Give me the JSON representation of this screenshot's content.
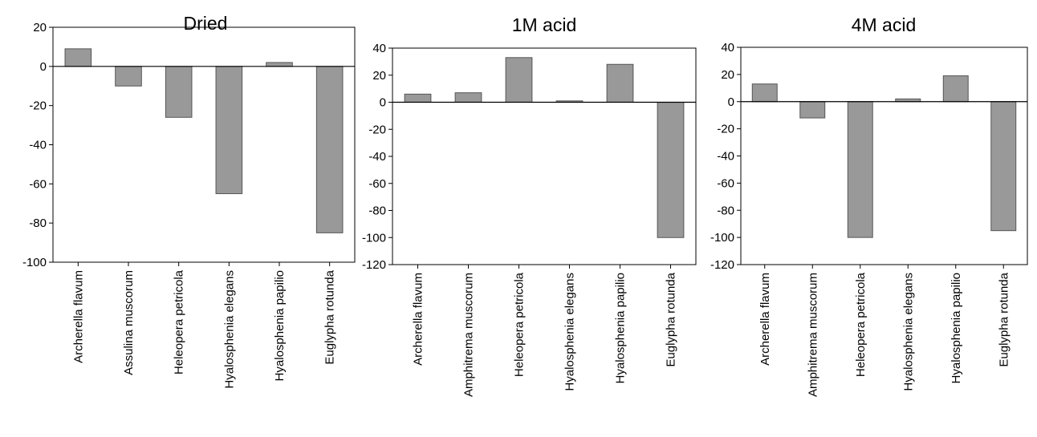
{
  "colors": {
    "bar_fill": "#999999",
    "bar_stroke": "#555555",
    "axis": "#000000",
    "background": "#ffffff"
  },
  "chart_data": [
    {
      "type": "bar",
      "title": "Dried",
      "categories": [
        "Archerella flavum",
        "Assulina muscorum",
        "Heleopera petricola",
        "Hyalosphenia elegans",
        "Hyalosphenia papilio",
        "Euglypha rotunda"
      ],
      "values": [
        9,
        -10,
        -26,
        -65,
        2,
        -85
      ],
      "ylim": [
        -100,
        20
      ],
      "yticks": [
        20,
        0,
        -20,
        -40,
        -60,
        -80,
        -100
      ],
      "xlabel": "",
      "ylabel": "",
      "grid": false
    },
    {
      "type": "bar",
      "title": "1M acid",
      "categories": [
        "Archerella flavum",
        "Amphitrema muscorum",
        "Heleopera petricola",
        "Hyalosphenia elegans",
        "Hyalosphenia papilio",
        "Euglypha rotunda"
      ],
      "values": [
        6,
        7,
        33,
        1,
        28,
        -100
      ],
      "ylim": [
        -120,
        40
      ],
      "yticks": [
        40,
        20,
        0,
        -20,
        -40,
        -60,
        -80,
        -100,
        -120
      ],
      "xlabel": "",
      "ylabel": "",
      "grid": false
    },
    {
      "type": "bar",
      "title": "4M acid",
      "categories": [
        "Archerella flavum",
        "Amphitrema muscorum",
        "Heleopera petricola",
        "Hyalosphenia elegans",
        "Hyalosphenia papilio",
        "Euglypha rotunda"
      ],
      "values": [
        13,
        -12,
        -100,
        2,
        19,
        -95
      ],
      "ylim": [
        -120,
        40
      ],
      "yticks": [
        40,
        20,
        0,
        -20,
        -40,
        -60,
        -80,
        -100,
        -120
      ],
      "xlabel": "",
      "ylabel": "",
      "grid": false
    }
  ]
}
